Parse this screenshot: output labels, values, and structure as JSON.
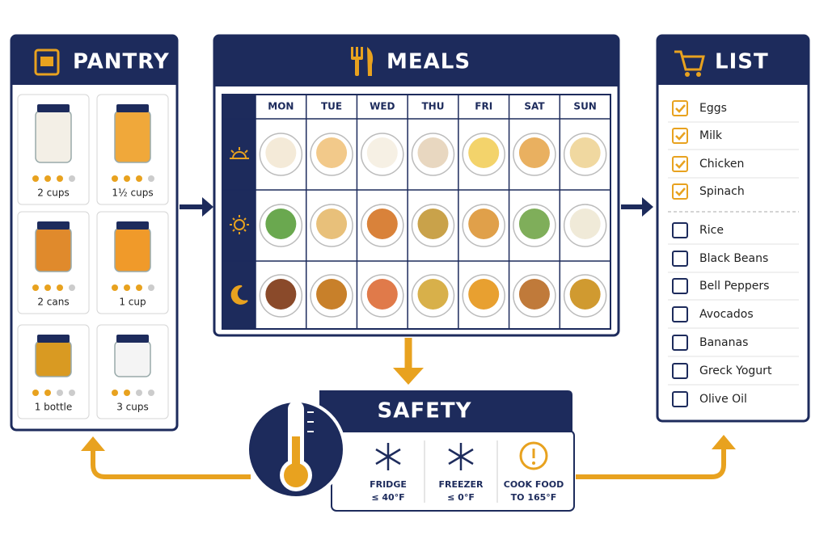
{
  "pantry": {
    "title": "PANTRY",
    "items": [
      "2 cups",
      "1½ cups",
      "2 cans",
      "1 cup",
      "1 bottle",
      "3 cups"
    ]
  },
  "meals": {
    "title": "MEALS",
    "days": [
      "MON",
      "TUE",
      "WED",
      "THU",
      "FRI",
      "SAT",
      "SUN"
    ]
  },
  "list": {
    "title": "LIST",
    "items": [
      {
        "name": "Eggs",
        "checked": true
      },
      {
        "name": "Milk",
        "checked": true
      },
      {
        "name": "Chicken",
        "checked": true
      },
      {
        "name": "Spinach",
        "checked": true
      },
      {
        "name": "Rice",
        "checked": false
      },
      {
        "name": "Black Beans",
        "checked": false
      },
      {
        "name": "Bell Peppers",
        "checked": false
      },
      {
        "name": "Avocados",
        "checked": false
      },
      {
        "name": "Bananas",
        "checked": false
      },
      {
        "name": "Greck Yogurt",
        "checked": false
      },
      {
        "name": "Olive Oil",
        "checked": false
      }
    ]
  },
  "safety": {
    "title": "SAFETY",
    "tips": [
      {
        "label": "FRIDGE",
        "detail": "≤ 40°F"
      },
      {
        "label": "FREEZER",
        "detail": "≤ 0°F"
      },
      {
        "label": "COOK FOOD",
        "detail": "TO 165°F"
      }
    ]
  }
}
